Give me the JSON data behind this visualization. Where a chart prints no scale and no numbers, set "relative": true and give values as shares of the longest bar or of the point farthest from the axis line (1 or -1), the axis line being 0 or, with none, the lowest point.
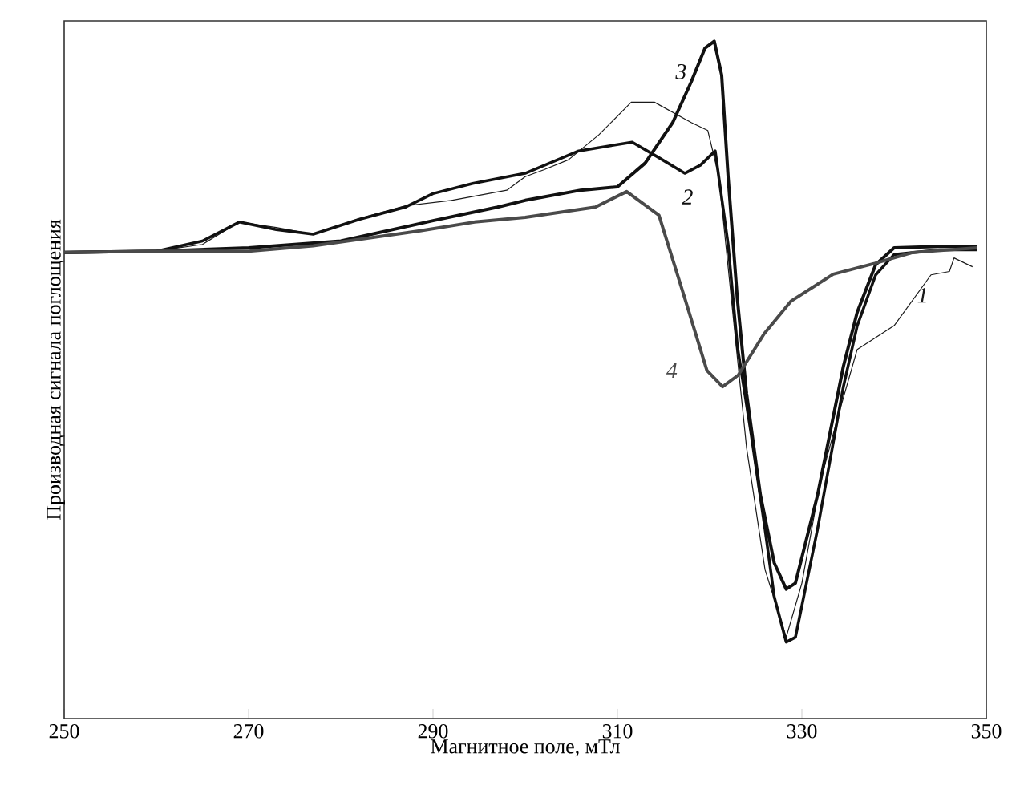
{
  "chart_data": {
    "type": "line",
    "xlabel": "Магнитное поле, мТл",
    "ylabel": "Производная сигнала поглощения",
    "relative": true,
    "xlim": [
      250,
      350
    ],
    "xticks": [
      250,
      270,
      290,
      310,
      330,
      350
    ],
    "grid": false,
    "marker": "none",
    "line_style": "solid",
    "series": [
      {
        "name": "1",
        "color": "#1a1a1a",
        "x": [
          250,
          260,
          265,
          269,
          273,
          277,
          282,
          287,
          292,
          298,
          300,
          302,
          304.7,
          308,
          311.5,
          314,
          318,
          319.8,
          321,
          322.5,
          324,
          326,
          328.3,
          330,
          332,
          334,
          336,
          340,
          344,
          346,
          346.5,
          348.5
        ],
        "values": [
          0.688,
          0.69,
          0.7,
          0.733,
          0.725,
          0.715,
          0.738,
          0.757,
          0.765,
          0.78,
          0.8,
          0.81,
          0.825,
          0.862,
          0.91,
          0.91,
          0.88,
          0.868,
          0.8,
          0.6,
          0.4,
          0.22,
          0.12,
          0.2,
          0.35,
          0.45,
          0.545,
          0.58,
          0.655,
          0.66,
          0.68,
          0.667
        ]
      },
      {
        "name": "2",
        "color": "#111111",
        "x": [
          250,
          260,
          265,
          269,
          273,
          277,
          282,
          287,
          290,
          294.3,
          300,
          305.8,
          311.6,
          314.5,
          317.3,
          319,
          320.6,
          322,
          323,
          324.5,
          326,
          327,
          328.3,
          329.3,
          331.7,
          334.5,
          336,
          338,
          340,
          345,
          349
        ],
        "values": [
          0.688,
          0.69,
          0.705,
          0.733,
          0.722,
          0.715,
          0.737,
          0.755,
          0.775,
          0.79,
          0.805,
          0.838,
          0.851,
          0.828,
          0.805,
          0.817,
          0.838,
          0.7,
          0.55,
          0.42,
          0.28,
          0.18,
          0.113,
          0.12,
          0.28,
          0.49,
          0.58,
          0.655,
          0.685,
          0.692,
          0.692
        ]
      },
      {
        "name": "3",
        "color": "#111111",
        "x": [
          250,
          260,
          270,
          280,
          290,
          297,
          300,
          306,
          310,
          313,
          316,
          318,
          319.5,
          320.5,
          321.3,
          322,
          323,
          324,
          325.5,
          327,
          328.3,
          329.3,
          331.7,
          334.5,
          336,
          338,
          340,
          345,
          349
        ],
        "values": [
          0.688,
          0.69,
          0.695,
          0.705,
          0.735,
          0.755,
          0.765,
          0.78,
          0.785,
          0.82,
          0.88,
          0.94,
          0.99,
          1.0,
          0.95,
          0.8,
          0.62,
          0.48,
          0.33,
          0.23,
          0.191,
          0.2,
          0.33,
          0.52,
          0.6,
          0.67,
          0.695,
          0.697,
          0.697
        ]
      },
      {
        "name": "4",
        "color": "#4a4a4a",
        "x": [
          250,
          260,
          270,
          277,
          288.6,
          294.5,
          300,
          307.6,
          311,
          314.5,
          317.2,
          319.7,
          321.4,
          323.1,
          325.9,
          328.8,
          333.4,
          337.9,
          342,
          349
        ],
        "values": [
          0.688,
          0.69,
          0.69,
          0.698,
          0.72,
          0.733,
          0.74,
          0.755,
          0.778,
          0.743,
          0.625,
          0.514,
          0.49,
          0.507,
          0.568,
          0.616,
          0.656,
          0.672,
          0.688,
          0.695
        ]
      }
    ]
  }
}
